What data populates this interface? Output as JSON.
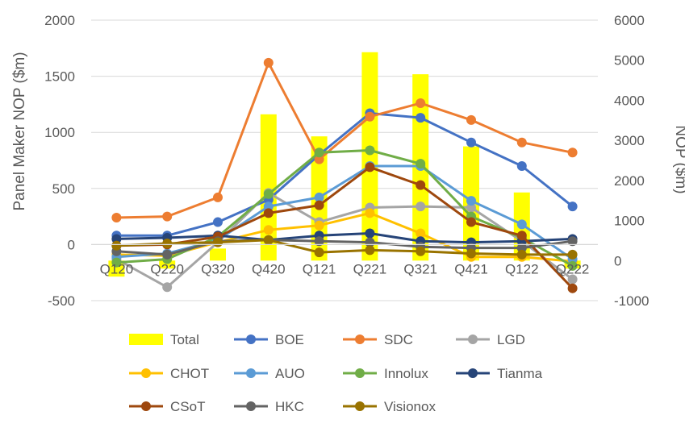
{
  "chart_data": {
    "type": "bar+line",
    "categories": [
      "Q120",
      "Q220",
      "Q320",
      "Q420",
      "Q121",
      "Q221",
      "Q321",
      "Q421",
      "Q122",
      "Q222"
    ],
    "ylabel": "Panel Maker NOP ($m)",
    "y2label": "NOP ($m)",
    "ylim": [
      -500,
      2000
    ],
    "y2lim": [
      -1000,
      6000
    ],
    "yticks": [
      "-500",
      "0",
      "500",
      "1000",
      "1500",
      "2000"
    ],
    "y2ticks": [
      "-1000",
      "0",
      "1000",
      "2000",
      "3000",
      "4000",
      "5000",
      "6000"
    ],
    "grid": true,
    "legend_position": "bottom",
    "bar_series": {
      "name": "Total",
      "axis": "secondary",
      "color": "#FFFF00",
      "values": [
        -400,
        -200,
        300,
        3650,
        3100,
        5200,
        4650,
        2850,
        1700,
        -200
      ]
    },
    "series": [
      {
        "name": "BOE",
        "color": "#4472C4",
        "values": [
          80,
          80,
          200,
          400,
          800,
          1170,
          1130,
          910,
          700,
          340
        ]
      },
      {
        "name": "SDC",
        "color": "#ED7D31",
        "values": [
          240,
          250,
          420,
          1620,
          760,
          1140,
          1260,
          1110,
          910,
          820
        ]
      },
      {
        "name": "LGD",
        "color": "#A5A5A5",
        "values": [
          -130,
          -380,
          20,
          460,
          200,
          330,
          340,
          330,
          30,
          -310
        ]
      },
      {
        "name": "CHOT",
        "color": "#FFC000",
        "values": [
          -90,
          -100,
          20,
          130,
          170,
          280,
          100,
          -110,
          -110,
          -150
        ]
      },
      {
        "name": "AUO",
        "color": "#5B9BD5",
        "values": [
          -110,
          -80,
          40,
          340,
          420,
          700,
          700,
          390,
          180,
          -130
        ]
      },
      {
        "name": "Innolux",
        "color": "#70AD47",
        "values": [
          -160,
          -130,
          70,
          450,
          820,
          840,
          720,
          250,
          60,
          -190
        ]
      },
      {
        "name": "Tianma",
        "color": "#264478",
        "values": [
          50,
          60,
          80,
          40,
          80,
          100,
          30,
          20,
          30,
          50
        ]
      },
      {
        "name": "CSoT",
        "color": "#9E480E",
        "values": [
          -10,
          0,
          70,
          280,
          350,
          690,
          530,
          200,
          80,
          -390
        ]
      },
      {
        "name": "HKC",
        "color": "#636363",
        "values": [
          -60,
          -90,
          30,
          40,
          30,
          20,
          -20,
          -30,
          -30,
          30
        ]
      },
      {
        "name": "Visionox",
        "color": "#997300",
        "values": [
          -10,
          10,
          20,
          40,
          -70,
          -50,
          -60,
          -80,
          -90,
          -90
        ]
      }
    ]
  }
}
